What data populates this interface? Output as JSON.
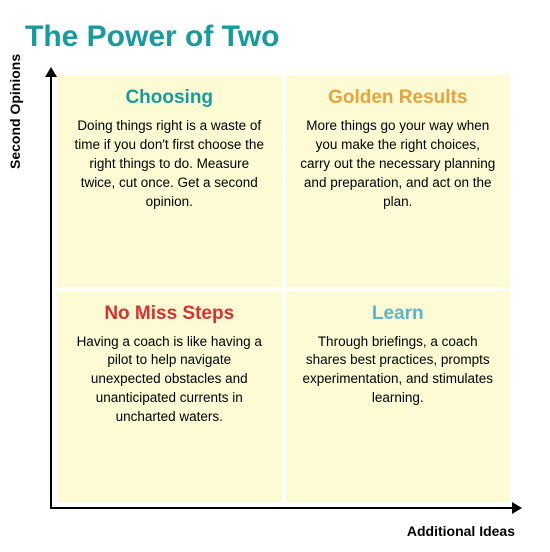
{
  "title": "The Power of Two",
  "title_color": "#1a9b9b",
  "y_axis_label": "Second Opinions",
  "x_axis_label": "Additional Ideas",
  "quadrant_bg": "#fdfbd4",
  "axis_color": "#000000",
  "background_color": "#ffffff",
  "quadrants": {
    "top_left": {
      "title": "Choosing",
      "title_color": "#1a9b9b",
      "body": "Doing things right is a waste of time if you don't first choose the right things to do. Measure twice, cut once. Get a second opinion."
    },
    "top_right": {
      "title": "Golden Results",
      "title_color": "#e8a33d",
      "body": "More things go your way when you make the right choices, carry out the necessary planning and preparation, and act on the plan."
    },
    "bottom_left": {
      "title": "No Miss Steps",
      "title_color": "#d93030",
      "body": "Having a coach is like having a pilot to help navigate unexpected obstacles and unanticipated currents in uncharted waters."
    },
    "bottom_right": {
      "title": "Learn",
      "title_color": "#5eb5c9",
      "body": "Through briefings, a coach shares best practices, prompts experimentation, and stimulates learning."
    }
  }
}
